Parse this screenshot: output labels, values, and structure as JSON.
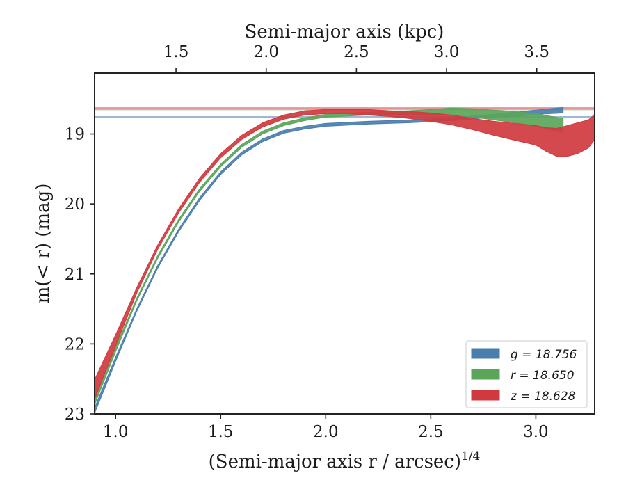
{
  "chart_data": {
    "type": "area",
    "xlabel": "(Semi-major axis r / arcsec)",
    "xlabel_superscript": "1/4",
    "ylabel": "m(< r) (mag)",
    "x2label": "Semi-major axis (kpc)",
    "xlim": [
      0.9,
      3.28
    ],
    "ylim": [
      23.0,
      18.13
    ],
    "y_inverted": true,
    "x2_scale": 1.165,
    "xticks": [
      1.0,
      1.5,
      2.0,
      2.5,
      3.0
    ],
    "xtick_labels": [
      "1.0",
      "1.5",
      "2.0",
      "2.5",
      "3.0"
    ],
    "yticks": [
      19,
      20,
      21,
      22,
      23
    ],
    "ytick_labels": [
      "19",
      "20",
      "21",
      "22",
      "23"
    ],
    "x2ticks": [
      1.5,
      2.0,
      2.5,
      3.0,
      3.5
    ],
    "x2tick_labels": [
      "1.5",
      "2.0",
      "2.5",
      "3.0",
      "3.5"
    ],
    "grid": false,
    "legend_position": "lower-right",
    "series": [
      {
        "name": "g = 18.756",
        "legend_label": "g = 18.756",
        "color": "#4a7eae",
        "asymptote": 18.756,
        "x": [
          0.9,
          1.0,
          1.1,
          1.2,
          1.3,
          1.4,
          1.5,
          1.6,
          1.7,
          1.8,
          1.9,
          2.0,
          2.2,
          2.4,
          2.6,
          2.8,
          2.9,
          3.0,
          3.13
        ],
        "y": [
          22.95,
          22.22,
          21.52,
          20.9,
          20.38,
          19.93,
          19.56,
          19.28,
          19.09,
          18.97,
          18.91,
          18.87,
          18.84,
          18.82,
          18.79,
          18.74,
          18.72,
          18.69,
          18.66
        ],
        "band": [
          0.04,
          0.03,
          0.02,
          0.02,
          0.02,
          0.02,
          0.02,
          0.02,
          0.02,
          0.02,
          0.02,
          0.02,
          0.02,
          0.02,
          0.02,
          0.02,
          0.03,
          0.03,
          0.04
        ]
      },
      {
        "name": "r = 18.650",
        "legend_label": "r = 18.650",
        "color": "#5aa55a",
        "asymptote": 18.65,
        "x": [
          0.9,
          1.0,
          1.1,
          1.2,
          1.3,
          1.4,
          1.5,
          1.6,
          1.7,
          1.8,
          1.9,
          2.0,
          2.2,
          2.4,
          2.5,
          2.6,
          2.7,
          2.8,
          2.9,
          3.0,
          3.13
        ],
        "y": [
          22.82,
          22.08,
          21.37,
          20.76,
          20.24,
          19.8,
          19.45,
          19.17,
          18.98,
          18.86,
          18.79,
          18.74,
          18.71,
          18.7,
          18.69,
          18.68,
          18.7,
          18.73,
          18.76,
          18.8,
          18.88
        ],
        "band": [
          0.05,
          0.03,
          0.02,
          0.02,
          0.02,
          0.02,
          0.02,
          0.02,
          0.02,
          0.02,
          0.02,
          0.02,
          0.02,
          0.03,
          0.04,
          0.05,
          0.06,
          0.07,
          0.08,
          0.09,
          0.1
        ]
      },
      {
        "name": "z = 18.628",
        "legend_label": "z = 18.628",
        "color": "#d03a3f",
        "asymptote": 18.628,
        "x": [
          0.9,
          1.0,
          1.1,
          1.2,
          1.3,
          1.4,
          1.5,
          1.6,
          1.7,
          1.8,
          1.9,
          2.0,
          2.1,
          2.2,
          2.3,
          2.4,
          2.5,
          2.6,
          2.7,
          2.8,
          2.9,
          3.0,
          3.05,
          3.1,
          3.15,
          3.2,
          3.25,
          3.28
        ],
        "y": [
          22.65,
          21.95,
          21.24,
          20.62,
          20.1,
          19.66,
          19.31,
          19.05,
          18.87,
          18.76,
          18.7,
          18.68,
          18.68,
          18.69,
          18.71,
          18.73,
          18.76,
          18.8,
          18.86,
          18.92,
          18.97,
          19.02,
          19.08,
          19.12,
          19.1,
          19.06,
          19.0,
          18.9
        ],
        "band": [
          0.14,
          0.08,
          0.04,
          0.03,
          0.03,
          0.03,
          0.03,
          0.03,
          0.03,
          0.03,
          0.03,
          0.03,
          0.03,
          0.04,
          0.04,
          0.05,
          0.06,
          0.07,
          0.08,
          0.1,
          0.12,
          0.14,
          0.17,
          0.2,
          0.22,
          0.22,
          0.2,
          0.18
        ]
      }
    ]
  }
}
